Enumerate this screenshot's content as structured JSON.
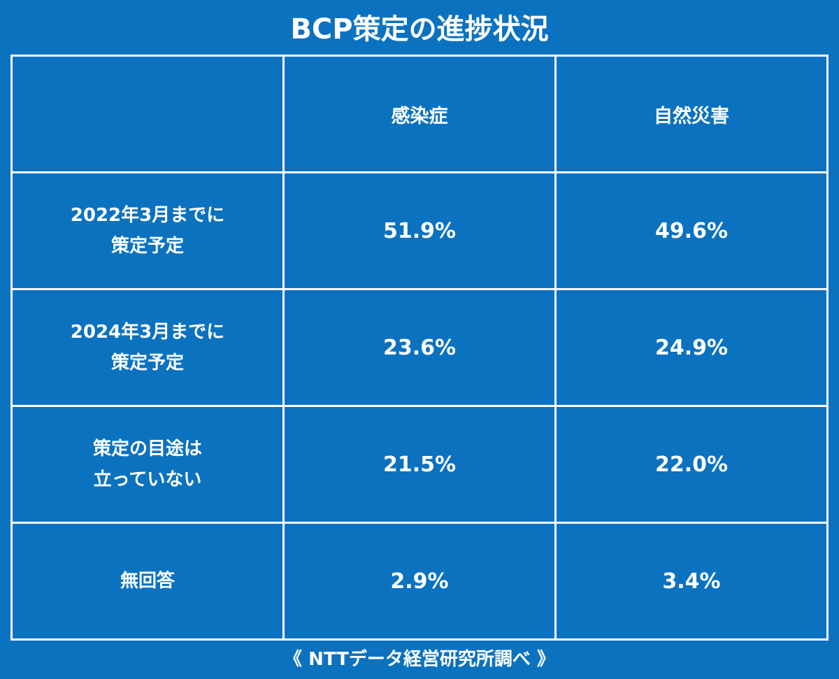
{
  "title": "BCP策定の進捗状況",
  "table": {
    "header": [
      "",
      "感染症",
      "自然災害"
    ],
    "rows": [
      {
        "label": [
          "2022年3月までに",
          "策定予定"
        ],
        "cells": [
          "51.9%",
          "49.6%"
        ]
      },
      {
        "label": [
          "2024年3月までに",
          "策定予定"
        ],
        "cells": [
          "23.6%",
          "24.9%"
        ]
      },
      {
        "label": [
          "策定の目途は",
          "立っていない"
        ],
        "cells": [
          "21.5%",
          "22.0%"
        ]
      },
      {
        "label": [
          "無回答"
        ],
        "cells": [
          "2.9%",
          "3.4%"
        ]
      }
    ]
  },
  "source": "《 NTTデータ経営研究所調べ 》"
}
